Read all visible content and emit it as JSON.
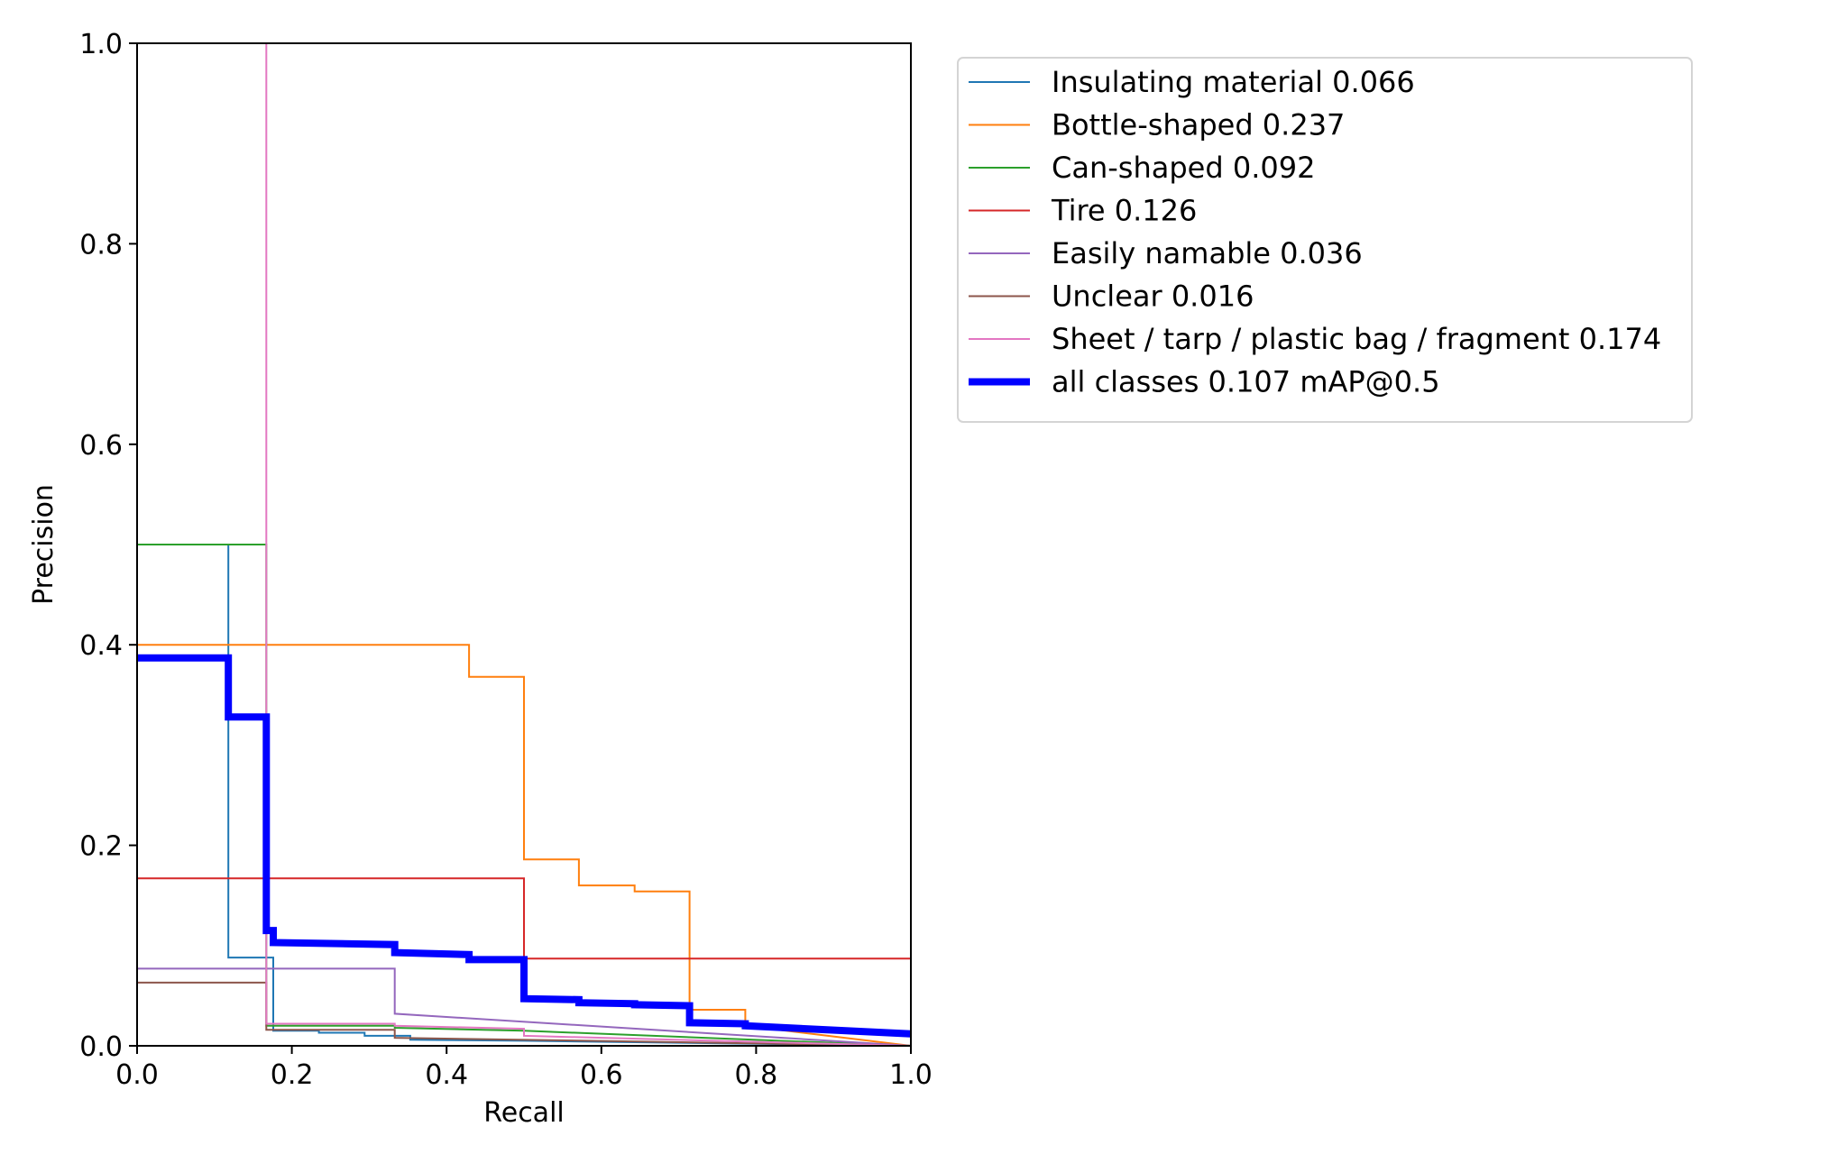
{
  "chart_data": {
    "type": "line",
    "title": "",
    "xlabel": "Recall",
    "ylabel": "Precision",
    "xlim": [
      0,
      1
    ],
    "ylim": [
      0,
      1
    ],
    "x_ticks": [
      "0.0",
      "0.2",
      "0.4",
      "0.6",
      "0.8",
      "1.0"
    ],
    "y_ticks": [
      "0.0",
      "0.2",
      "0.4",
      "0.6",
      "0.8",
      "1.0"
    ],
    "grid": false,
    "legend_position": "outside top-right",
    "series": [
      {
        "name": "Insulating material 0.066",
        "color": "#1f77b4",
        "points": [
          [
            0,
            0.5
          ],
          [
            0.118,
            0.5
          ],
          [
            0.118,
            0.088
          ],
          [
            0.176,
            0.088
          ],
          [
            0.176,
            0.015
          ],
          [
            0.235,
            0.015
          ],
          [
            0.235,
            0.013
          ],
          [
            0.294,
            0.013
          ],
          [
            0.294,
            0.01
          ],
          [
            0.353,
            0.01
          ],
          [
            0.353,
            0.006
          ],
          [
            0.5,
            0.005
          ],
          [
            1.0,
            0.0
          ]
        ]
      },
      {
        "name": "Bottle-shaped 0.237",
        "color": "#ff7f0e",
        "points": [
          [
            0,
            0.4
          ],
          [
            0.429,
            0.4
          ],
          [
            0.429,
            0.368
          ],
          [
            0.5,
            0.368
          ],
          [
            0.5,
            0.186
          ],
          [
            0.571,
            0.186
          ],
          [
            0.571,
            0.16
          ],
          [
            0.643,
            0.16
          ],
          [
            0.643,
            0.154
          ],
          [
            0.714,
            0.154
          ],
          [
            0.714,
            0.036
          ],
          [
            0.786,
            0.036
          ],
          [
            0.786,
            0.02
          ],
          [
            1.0,
            0.0
          ]
        ]
      },
      {
        "name": "Can-shaped 0.092",
        "color": "#2ca02c",
        "points": [
          [
            0,
            0.5
          ],
          [
            0.167,
            0.5
          ],
          [
            0.167,
            0.02
          ],
          [
            0.333,
            0.02
          ],
          [
            0.333,
            0.018
          ],
          [
            0.5,
            0.015
          ],
          [
            1.0,
            0.0
          ]
        ]
      },
      {
        "name": "Tire 0.126",
        "color": "#d62728",
        "points": [
          [
            0,
            0.167
          ],
          [
            0.5,
            0.167
          ],
          [
            0.5,
            0.087
          ],
          [
            1.0,
            0.087
          ],
          [
            1.0,
            0.0
          ]
        ]
      },
      {
        "name": "Easily namable 0.036",
        "color": "#9467bd",
        "points": [
          [
            0,
            0.077
          ],
          [
            0.333,
            0.077
          ],
          [
            0.333,
            0.032
          ],
          [
            1.0,
            0.0
          ]
        ]
      },
      {
        "name": "Unclear 0.016",
        "color": "#8c564b",
        "points": [
          [
            0,
            0.063
          ],
          [
            0.167,
            0.063
          ],
          [
            0.167,
            0.016
          ],
          [
            0.333,
            0.016
          ],
          [
            0.333,
            0.008
          ],
          [
            1.0,
            0.0
          ]
        ]
      },
      {
        "name": "Sheet / tarp / plastic bag / fragment 0.174",
        "color": "#e377c2",
        "points": [
          [
            0.167,
            1.0
          ],
          [
            0.167,
            0.022
          ],
          [
            0.333,
            0.022
          ],
          [
            0.333,
            0.02
          ],
          [
            0.5,
            0.017
          ],
          [
            0.5,
            0.01
          ],
          [
            1.0,
            0.0
          ]
        ]
      },
      {
        "name": "all classes 0.107 mAP@0.5",
        "color": "#0000ff",
        "thick": true,
        "points": [
          [
            0,
            0.387
          ],
          [
            0.118,
            0.387
          ],
          [
            0.118,
            0.328
          ],
          [
            0.167,
            0.328
          ],
          [
            0.167,
            0.115
          ],
          [
            0.176,
            0.115
          ],
          [
            0.176,
            0.103
          ],
          [
            0.333,
            0.101
          ],
          [
            0.333,
            0.093
          ],
          [
            0.429,
            0.091
          ],
          [
            0.429,
            0.086
          ],
          [
            0.5,
            0.086
          ],
          [
            0.5,
            0.047
          ],
          [
            0.571,
            0.046
          ],
          [
            0.571,
            0.043
          ],
          [
            0.643,
            0.042
          ],
          [
            0.643,
            0.041
          ],
          [
            0.714,
            0.04
          ],
          [
            0.714,
            0.023
          ],
          [
            0.786,
            0.022
          ],
          [
            0.786,
            0.02
          ],
          [
            1.0,
            0.012
          ]
        ]
      }
    ]
  }
}
